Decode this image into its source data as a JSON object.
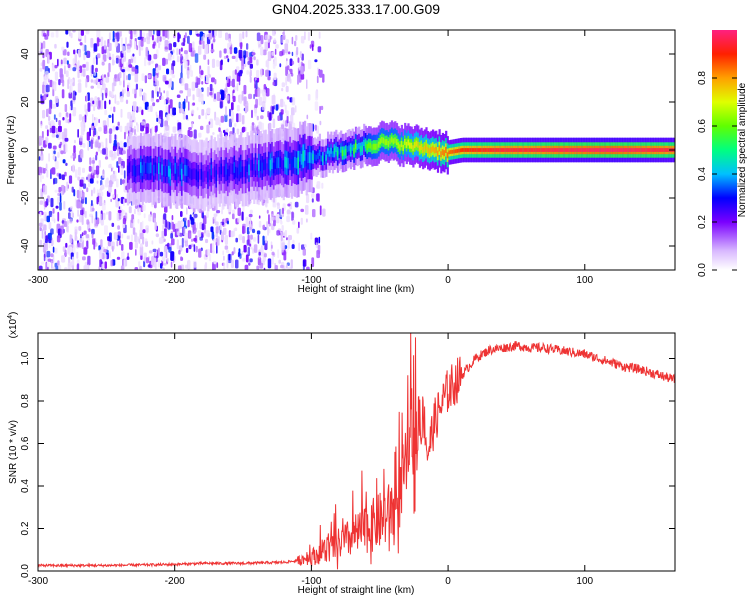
{
  "title": "GN04.2025.333.17.00.G09",
  "chart_data": [
    {
      "type": "heatmap",
      "name": "spectrogram",
      "xlabel": "Height of straight line (km)",
      "ylabel": "Frequency (Hz)",
      "xlim": [
        -300,
        166
      ],
      "ylim": [
        -50,
        50
      ],
      "xticks": [
        -300,
        -200,
        -100,
        0,
        100
      ],
      "yticks": [
        40,
        20,
        0,
        -20,
        -40
      ],
      "colorbar": {
        "label": "Normalized spectral amplitude",
        "range": [
          0,
          1
        ],
        "ticks": [
          0.0,
          0.2,
          0.4,
          0.6,
          0.8
        ]
      },
      "ridge": {
        "x": [
          -235,
          -200,
          -180,
          -150,
          -130,
          -110,
          -90,
          -75,
          -60,
          -50,
          -40,
          -30,
          -20,
          -10,
          0,
          10,
          20,
          40,
          60,
          80,
          100,
          120,
          140,
          166
        ],
        "freq": [
          -8,
          -9,
          -10,
          -8,
          -7,
          -4,
          -2,
          0,
          2,
          3,
          3,
          2,
          1,
          0,
          -1,
          0,
          0,
          0,
          0,
          0,
          0,
          0,
          0,
          0
        ],
        "amplitude": [
          0.35,
          0.4,
          0.3,
          0.35,
          0.4,
          0.45,
          0.5,
          0.55,
          0.6,
          0.65,
          0.65,
          0.7,
          0.75,
          0.8,
          0.85,
          0.9,
          0.92,
          0.95,
          0.95,
          0.97,
          0.98,
          0.99,
          0.97,
          0.95
        ]
      },
      "noise_region_x": [
        -300,
        -100
      ]
    },
    {
      "type": "line",
      "name": "snr",
      "xlabel": "Height of straight line (km)",
      "ylabel": "SNR (10 * v/v)",
      "scale_label": "(x10",
      "scale_exp": "4",
      "scale_close": ")",
      "xlim": [
        -300,
        166
      ],
      "ylim": [
        0,
        1.12
      ],
      "xticks": [
        -300,
        -200,
        -100,
        0,
        100
      ],
      "yticks": [
        0.0,
        0.2,
        0.4,
        0.6,
        0.8,
        1.0
      ],
      "color": "#ee3333",
      "x": [
        -300,
        -250,
        -200,
        -180,
        -150,
        -120,
        -100,
        -85,
        -70,
        -60,
        -50,
        -40,
        -35,
        -30,
        -27,
        -25,
        -22,
        -18,
        -15,
        -10,
        -5,
        0,
        10,
        20,
        30,
        40,
        50,
        60,
        70,
        80,
        90,
        100,
        110,
        120,
        130,
        140,
        150,
        166
      ],
      "y": [
        0.02,
        0.02,
        0.025,
        0.03,
        0.03,
        0.035,
        0.05,
        0.08,
        0.12,
        0.15,
        0.18,
        0.22,
        0.3,
        0.45,
        0.7,
        0.5,
        0.6,
        0.75,
        0.55,
        0.7,
        0.78,
        0.85,
        0.92,
        1.0,
        1.04,
        1.05,
        1.06,
        1.05,
        1.05,
        1.04,
        1.03,
        1.02,
        1.0,
        0.98,
        0.96,
        0.95,
        0.93,
        0.9
      ]
    }
  ]
}
